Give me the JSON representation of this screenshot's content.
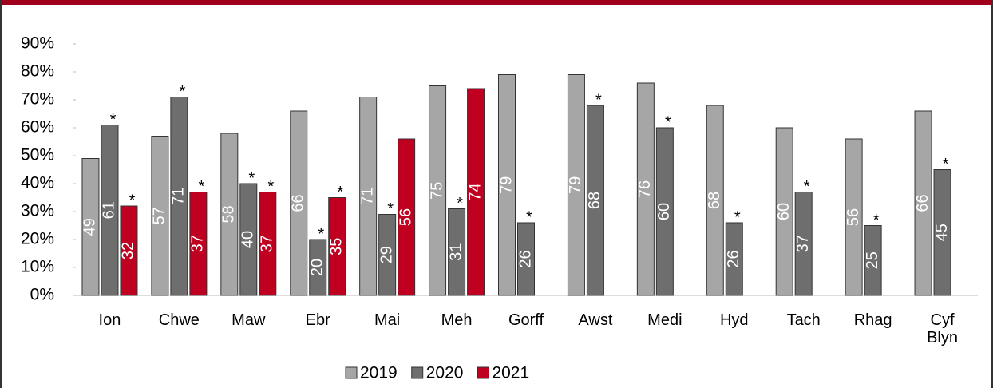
{
  "chart_data": {
    "type": "bar",
    "categories": [
      "Ion",
      "Chwe",
      "Maw",
      "Ebr",
      "Mai",
      "Meh",
      "Gorff",
      "Awst",
      "Medi",
      "Hyd",
      "Tach",
      "Rhag",
      "Cyf Blyn"
    ],
    "series": [
      {
        "name": "2019",
        "color": "#a6a6a6",
        "values": [
          49,
          57,
          58,
          66,
          71,
          75,
          79,
          79,
          76,
          68,
          60,
          56,
          66
        ],
        "value_notes": [
          null,
          null,
          null,
          null,
          null,
          null,
          null,
          null,
          null,
          null,
          null,
          null,
          null
        ]
      },
      {
        "name": "2020",
        "color": "#6e6e6e",
        "values": [
          61,
          71,
          40,
          20,
          29,
          31,
          26,
          68,
          60,
          26,
          37,
          25,
          45
        ],
        "value_notes": [
          "*",
          "*",
          "*",
          "*",
          "*",
          "*",
          "*",
          "*",
          "*",
          "*",
          "*",
          "*",
          "*"
        ]
      },
      {
        "name": "2021",
        "color": "#c00020",
        "values": [
          32,
          37,
          37,
          35,
          56,
          74,
          null,
          null,
          null,
          null,
          null,
          null,
          null
        ],
        "value_notes": [
          "*",
          "*",
          "*",
          "*",
          null,
          null,
          null,
          null,
          null,
          null,
          null,
          null,
          null
        ]
      }
    ],
    "ylim": [
      0,
      90
    ],
    "yticks": [
      {
        "value": 0,
        "label": "0%"
      },
      {
        "value": 10,
        "label": "10%"
      },
      {
        "value": 20,
        "label": "20%"
      },
      {
        "value": 30,
        "label": "30%"
      },
      {
        "value": 40,
        "label": "40%"
      },
      {
        "value": 50,
        "label": "50%"
      },
      {
        "value": 60,
        "label": "60%"
      },
      {
        "value": 70,
        "label": "70%"
      },
      {
        "value": 80,
        "label": "80%"
      },
      {
        "value": 90,
        "label": "90%"
      }
    ],
    "legend": "bottom"
  }
}
